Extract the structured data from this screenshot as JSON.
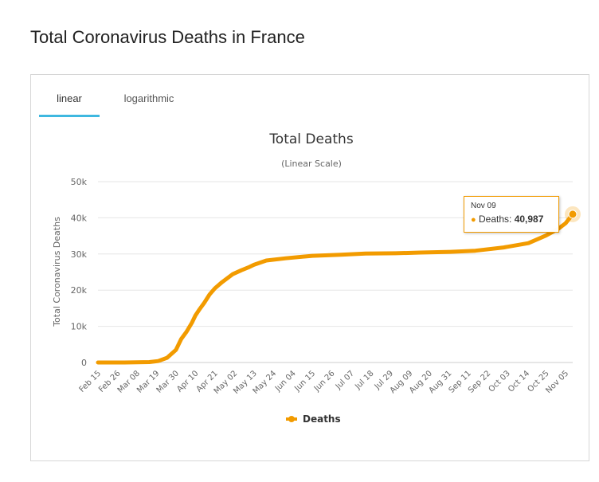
{
  "page_title": "Total Coronavirus Deaths in France",
  "tabs": [
    {
      "label": "linear",
      "active": true
    },
    {
      "label": "logarithmic",
      "active": false
    }
  ],
  "colors": {
    "series": "#f29b00",
    "tab_active": "#3eb8e0",
    "grid": "#e6e6e6"
  },
  "tooltip": {
    "date": "Nov 09",
    "series": "Deaths",
    "value": "40,987"
  },
  "chart_data": {
    "type": "line",
    "title": "Total Deaths",
    "subtitle": "(Linear Scale)",
    "xlabel": "",
    "ylabel": "Total Coronavirus Deaths",
    "ylim": [
      0,
      50000
    ],
    "yticks": [
      0,
      10000,
      20000,
      30000,
      40000,
      50000
    ],
    "ytick_labels": [
      "0",
      "10k",
      "20k",
      "30k",
      "40k",
      "50k"
    ],
    "xlim": [
      "2020-02-15",
      "2020-11-09"
    ],
    "xtick_labels": [
      "Feb 15",
      "Feb 26",
      "Mar 08",
      "Mar 19",
      "Mar 30",
      "Apr 10",
      "Apr 21",
      "May 02",
      "May 13",
      "May 24",
      "Jun 04",
      "Jun 15",
      "Jun 26",
      "Jul 07",
      "Jul 18",
      "Jul 29",
      "Aug 09",
      "Aug 20",
      "Aug 31",
      "Sep 11",
      "Sep 22",
      "Oct 03",
      "Oct 14",
      "Oct 25",
      "Nov 05"
    ],
    "xtick_dates": [
      "2020-02-15",
      "2020-02-26",
      "2020-03-08",
      "2020-03-19",
      "2020-03-30",
      "2020-04-10",
      "2020-04-21",
      "2020-05-02",
      "2020-05-13",
      "2020-05-24",
      "2020-06-04",
      "2020-06-15",
      "2020-06-26",
      "2020-07-07",
      "2020-07-18",
      "2020-07-29",
      "2020-08-09",
      "2020-08-20",
      "2020-08-31",
      "2020-09-11",
      "2020-09-22",
      "2020-10-03",
      "2020-10-14",
      "2020-10-25",
      "2020-11-05"
    ],
    "grid": true,
    "legend": "bottom-center",
    "series": [
      {
        "name": "Deaths",
        "x": [
          "2020-02-15",
          "2020-03-01",
          "2020-03-15",
          "2020-03-20",
          "2020-03-25",
          "2020-03-30",
          "2020-04-02",
          "2020-04-05",
          "2020-04-08",
          "2020-04-10",
          "2020-04-12",
          "2020-04-15",
          "2020-04-18",
          "2020-04-21",
          "2020-04-25",
          "2020-05-01",
          "2020-05-06",
          "2020-05-10",
          "2020-05-13",
          "2020-05-20",
          "2020-05-31",
          "2020-06-15",
          "2020-07-01",
          "2020-07-15",
          "2020-08-01",
          "2020-08-15",
          "2020-09-01",
          "2020-09-15",
          "2020-10-01",
          "2020-10-15",
          "2020-10-25",
          "2020-11-01",
          "2020-11-05",
          "2020-11-09"
        ],
        "y": [
          0,
          0,
          100,
          400,
          1300,
          3500,
          6500,
          8500,
          11000,
          13000,
          14500,
          16500,
          18800,
          20500,
          22200,
          24400,
          25500,
          26300,
          27000,
          28200,
          28800,
          29500,
          29800,
          30100,
          30200,
          30400,
          30600,
          30900,
          31800,
          33000,
          35100,
          37000,
          38500,
          40987
        ]
      }
    ]
  }
}
